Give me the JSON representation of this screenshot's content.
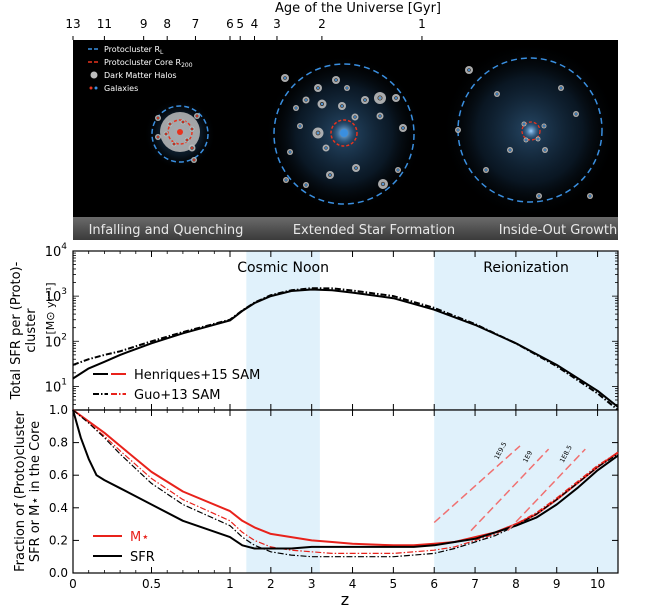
{
  "top_axis": {
    "label": "Age of the Universe  [Gyr]",
    "ticks": [
      {
        "age": 13,
        "z": 0.0
      },
      {
        "age": 11,
        "z": 0.2
      },
      {
        "age": 9,
        "z": 0.45
      },
      {
        "age": 8,
        "z": 0.6
      },
      {
        "age": 7,
        "z": 0.78
      },
      {
        "age": 6,
        "z": 1.0
      },
      {
        "age": 5,
        "z": 1.25
      },
      {
        "age": 4,
        "z": 1.6
      },
      {
        "age": 3,
        "z": 2.15
      },
      {
        "age": 2,
        "z": 3.25
      },
      {
        "age": 1,
        "z": 5.7
      }
    ]
  },
  "illustration": {
    "legend": [
      {
        "label": "Protocluster R",
        "sub": "L",
        "marker": "blue-dashed"
      },
      {
        "label": "Protocluster Core R",
        "sub": "200",
        "marker": "red-dashed"
      },
      {
        "label": "Dark Matter Halos",
        "sub": "",
        "marker": "gray-dot"
      },
      {
        "label": "Galaxies",
        "sub": "",
        "marker": "color-dots"
      }
    ],
    "stages": [
      "Infalling and Quenching",
      "Extended Star Formation",
      "Inside-Out Growth"
    ]
  },
  "chart_data": [
    {
      "type": "line",
      "name": "sfr-panel",
      "ylabel": "Total SFR per (Proto)-\ncluster",
      "yunit": "[M⊙ yr⁻¹]",
      "yscale": "log",
      "ylim": [
        3,
        10000
      ],
      "yticks": [
        {
          "v": 10,
          "exp": "1"
        },
        {
          "v": 100,
          "exp": "2"
        },
        {
          "v": 1000,
          "exp": "3"
        },
        {
          "v": 10000,
          "exp": "4"
        }
      ],
      "xlim": [
        0,
        10.5
      ],
      "regions": [
        {
          "label": "Cosmic Noon",
          "x": [
            1.4,
            3.2
          ]
        },
        {
          "label": "Reionization",
          "x": [
            6,
            10.5
          ]
        }
      ],
      "series": [
        {
          "name": "Henriques+15 SAM",
          "color": "#000000",
          "dash": "solid",
          "x": [
            0,
            0.1,
            0.2,
            0.3,
            0.5,
            0.7,
            1,
            1.3,
            1.6,
            2,
            2.5,
            3,
            3.5,
            4,
            5,
            6,
            7,
            8,
            9,
            10,
            10.5
          ],
          "y": [
            15,
            25,
            35,
            50,
            90,
            150,
            290,
            470,
            700,
            1000,
            1300,
            1400,
            1350,
            1200,
            900,
            500,
            230,
            90,
            30,
            8,
            3.5
          ]
        },
        {
          "name": "Guo+13 SAM",
          "color": "#000000",
          "dash": "dashdot",
          "x": [
            0,
            0.1,
            0.2,
            0.3,
            0.5,
            0.7,
            1,
            1.3,
            1.6,
            2,
            2.5,
            3,
            3.5,
            4,
            5,
            6,
            7,
            8,
            9,
            10,
            10.5
          ],
          "y": [
            30,
            40,
            50,
            60,
            100,
            160,
            300,
            480,
            720,
            1050,
            1350,
            1500,
            1480,
            1330,
            1000,
            550,
            240,
            90,
            28,
            7,
            3
          ]
        }
      ],
      "legend": [
        {
          "text": "Henriques+15 SAM",
          "colors": [
            "#000000",
            "#e8221b"
          ],
          "dash": "solid"
        },
        {
          "text": "Guo+13 SAM",
          "colors": [
            "#000000",
            "#e8221b"
          ],
          "dash": "dashdot"
        }
      ]
    },
    {
      "type": "line",
      "name": "fraction-panel",
      "ylabel": "Fraction of (Proto)cluster\nSFR or M⋆ in the Core",
      "xlabel": "z",
      "ylim": [
        0,
        1
      ],
      "yticks": [
        0,
        0.2,
        0.4,
        0.6,
        0.8,
        1.0
      ],
      "xticks": [
        {
          "label": "0",
          "z": 0
        },
        {
          "label": "0.5",
          "z": 0.5
        },
        {
          "label": "1",
          "z": 1
        },
        {
          "label": "2",
          "z": 2
        },
        {
          "label": "3",
          "z": 3
        },
        {
          "label": "4",
          "z": 4
        },
        {
          "label": "5",
          "z": 5
        },
        {
          "label": "6",
          "z": 6
        },
        {
          "label": "7",
          "z": 7
        },
        {
          "label": "8",
          "z": 8
        },
        {
          "label": "9",
          "z": 9
        },
        {
          "label": "10",
          "z": 10
        }
      ],
      "regions": [
        {
          "label": "",
          "x": [
            1.4,
            3.2
          ]
        },
        {
          "label": "",
          "x": [
            6,
            10.5
          ]
        }
      ],
      "series": [
        {
          "name": "M⋆",
          "color": "#e8221b",
          "dash": "solid",
          "width": 2,
          "x": [
            0,
            0.1,
            0.2,
            0.3,
            0.5,
            0.7,
            1,
            1.3,
            1.6,
            2,
            2.5,
            3,
            3.5,
            4,
            5,
            5.5,
            6,
            6.5,
            7,
            7.5,
            8,
            8.5,
            9,
            9.5,
            10,
            10.5
          ],
          "y": [
            1,
            0.93,
            0.86,
            0.78,
            0.62,
            0.5,
            0.38,
            0.32,
            0.28,
            0.24,
            0.22,
            0.2,
            0.19,
            0.18,
            0.17,
            0.17,
            0.18,
            0.19,
            0.22,
            0.25,
            0.3,
            0.36,
            0.45,
            0.55,
            0.65,
            0.74
          ]
        },
        {
          "name": "M⋆ (Guo+13)",
          "color": "#e8221b",
          "dash": "dashdot",
          "width": 1.2,
          "x": [
            0,
            0.1,
            0.2,
            0.3,
            0.5,
            0.7,
            1,
            1.3,
            1.6,
            2,
            2.5,
            3,
            3.5,
            4,
            5,
            6,
            6.5,
            7,
            7.5,
            8,
            8.5,
            9,
            9.5,
            10,
            10.5
          ],
          "y": [
            1,
            0.92,
            0.84,
            0.75,
            0.58,
            0.45,
            0.32,
            0.25,
            0.2,
            0.16,
            0.14,
            0.13,
            0.12,
            0.12,
            0.12,
            0.14,
            0.16,
            0.2,
            0.24,
            0.3,
            0.37,
            0.46,
            0.56,
            0.66,
            0.74
          ]
        },
        {
          "name": "SFR",
          "color": "#000000",
          "dash": "solid",
          "width": 2,
          "x": [
            0,
            0.05,
            0.1,
            0.15,
            0.2,
            0.3,
            0.5,
            0.7,
            1,
            1.3,
            1.6,
            2,
            2.5,
            3,
            3.5,
            4,
            5,
            5.5,
            6,
            6.5,
            7,
            7.5,
            8,
            8.5,
            9,
            9.5,
            10,
            10.5
          ],
          "y": [
            1,
            0.83,
            0.7,
            0.6,
            0.57,
            0.52,
            0.42,
            0.32,
            0.22,
            0.17,
            0.15,
            0.15,
            0.15,
            0.16,
            0.16,
            0.16,
            0.16,
            0.16,
            0.17,
            0.19,
            0.21,
            0.25,
            0.29,
            0.34,
            0.42,
            0.52,
            0.63,
            0.72
          ]
        },
        {
          "name": "SFR (Guo+13)",
          "color": "#000000",
          "dash": "dashdot",
          "width": 1.2,
          "x": [
            0,
            0.1,
            0.2,
            0.3,
            0.5,
            0.7,
            1,
            1.3,
            1.6,
            2,
            2.5,
            3,
            3.5,
            4,
            5,
            6,
            6.5,
            7,
            7.5,
            8,
            8.5,
            9,
            9.5,
            10,
            10.5
          ],
          "y": [
            1,
            0.92,
            0.83,
            0.73,
            0.55,
            0.42,
            0.29,
            0.22,
            0.17,
            0.13,
            0.11,
            0.1,
            0.1,
            0.1,
            0.1,
            0.12,
            0.15,
            0.19,
            0.23,
            0.29,
            0.36,
            0.45,
            0.55,
            0.65,
            0.73
          ]
        },
        {
          "name": "1E9.5",
          "color": "#f07070",
          "dash": "longdash",
          "width": 1.5,
          "x": [
            6.0,
            8.1
          ],
          "y": [
            0.31,
            0.78
          ]
        },
        {
          "name": "1E9",
          "color": "#f07070",
          "dash": "longdash",
          "width": 1.5,
          "x": [
            6.9,
            8.8
          ],
          "y": [
            0.26,
            0.76
          ]
        },
        {
          "name": "1E8.5",
          "color": "#f07070",
          "dash": "longdash",
          "width": 1.5,
          "x": [
            7.8,
            9.7
          ],
          "y": [
            0.26,
            0.76
          ]
        }
      ],
      "legend": [
        {
          "text": "M⋆",
          "color": "#e8221b"
        },
        {
          "text": "SFR",
          "color": "#000000"
        }
      ]
    }
  ]
}
